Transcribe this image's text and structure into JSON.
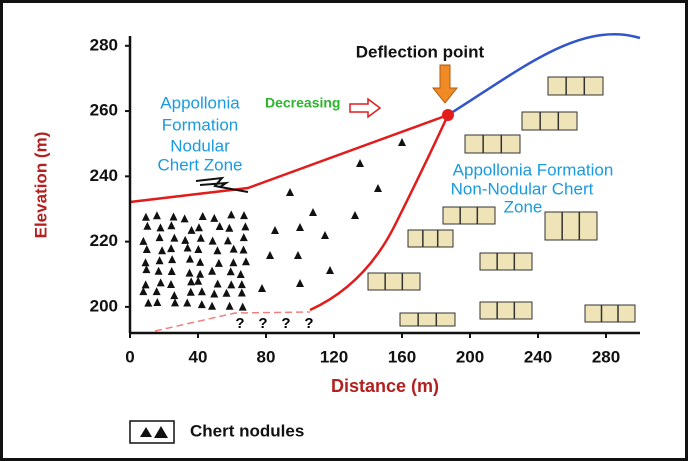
{
  "axes": {
    "xlabel": "Distance (m)",
    "ylabel": "Elevation (m)",
    "xlim": [
      0,
      300
    ],
    "ylim": [
      192,
      283
    ],
    "xticks": [
      0,
      40,
      80,
      120,
      160,
      200,
      240,
      280
    ],
    "yticks": [
      200,
      220,
      240,
      260,
      280
    ]
  },
  "annotations": {
    "deflection": "Deflection point",
    "decreasing": "Decreasing",
    "nodular_zone": [
      "Appollonia",
      "Formation",
      "Nodular",
      "Chert Zone"
    ],
    "non_nodular_zone": [
      "Appollonia Formation",
      "Non-Nodular Chert",
      "Zone"
    ],
    "question_marks": [
      "?",
      "?",
      "?",
      "?"
    ]
  },
  "legend": {
    "label": "Chert nodules"
  }
}
